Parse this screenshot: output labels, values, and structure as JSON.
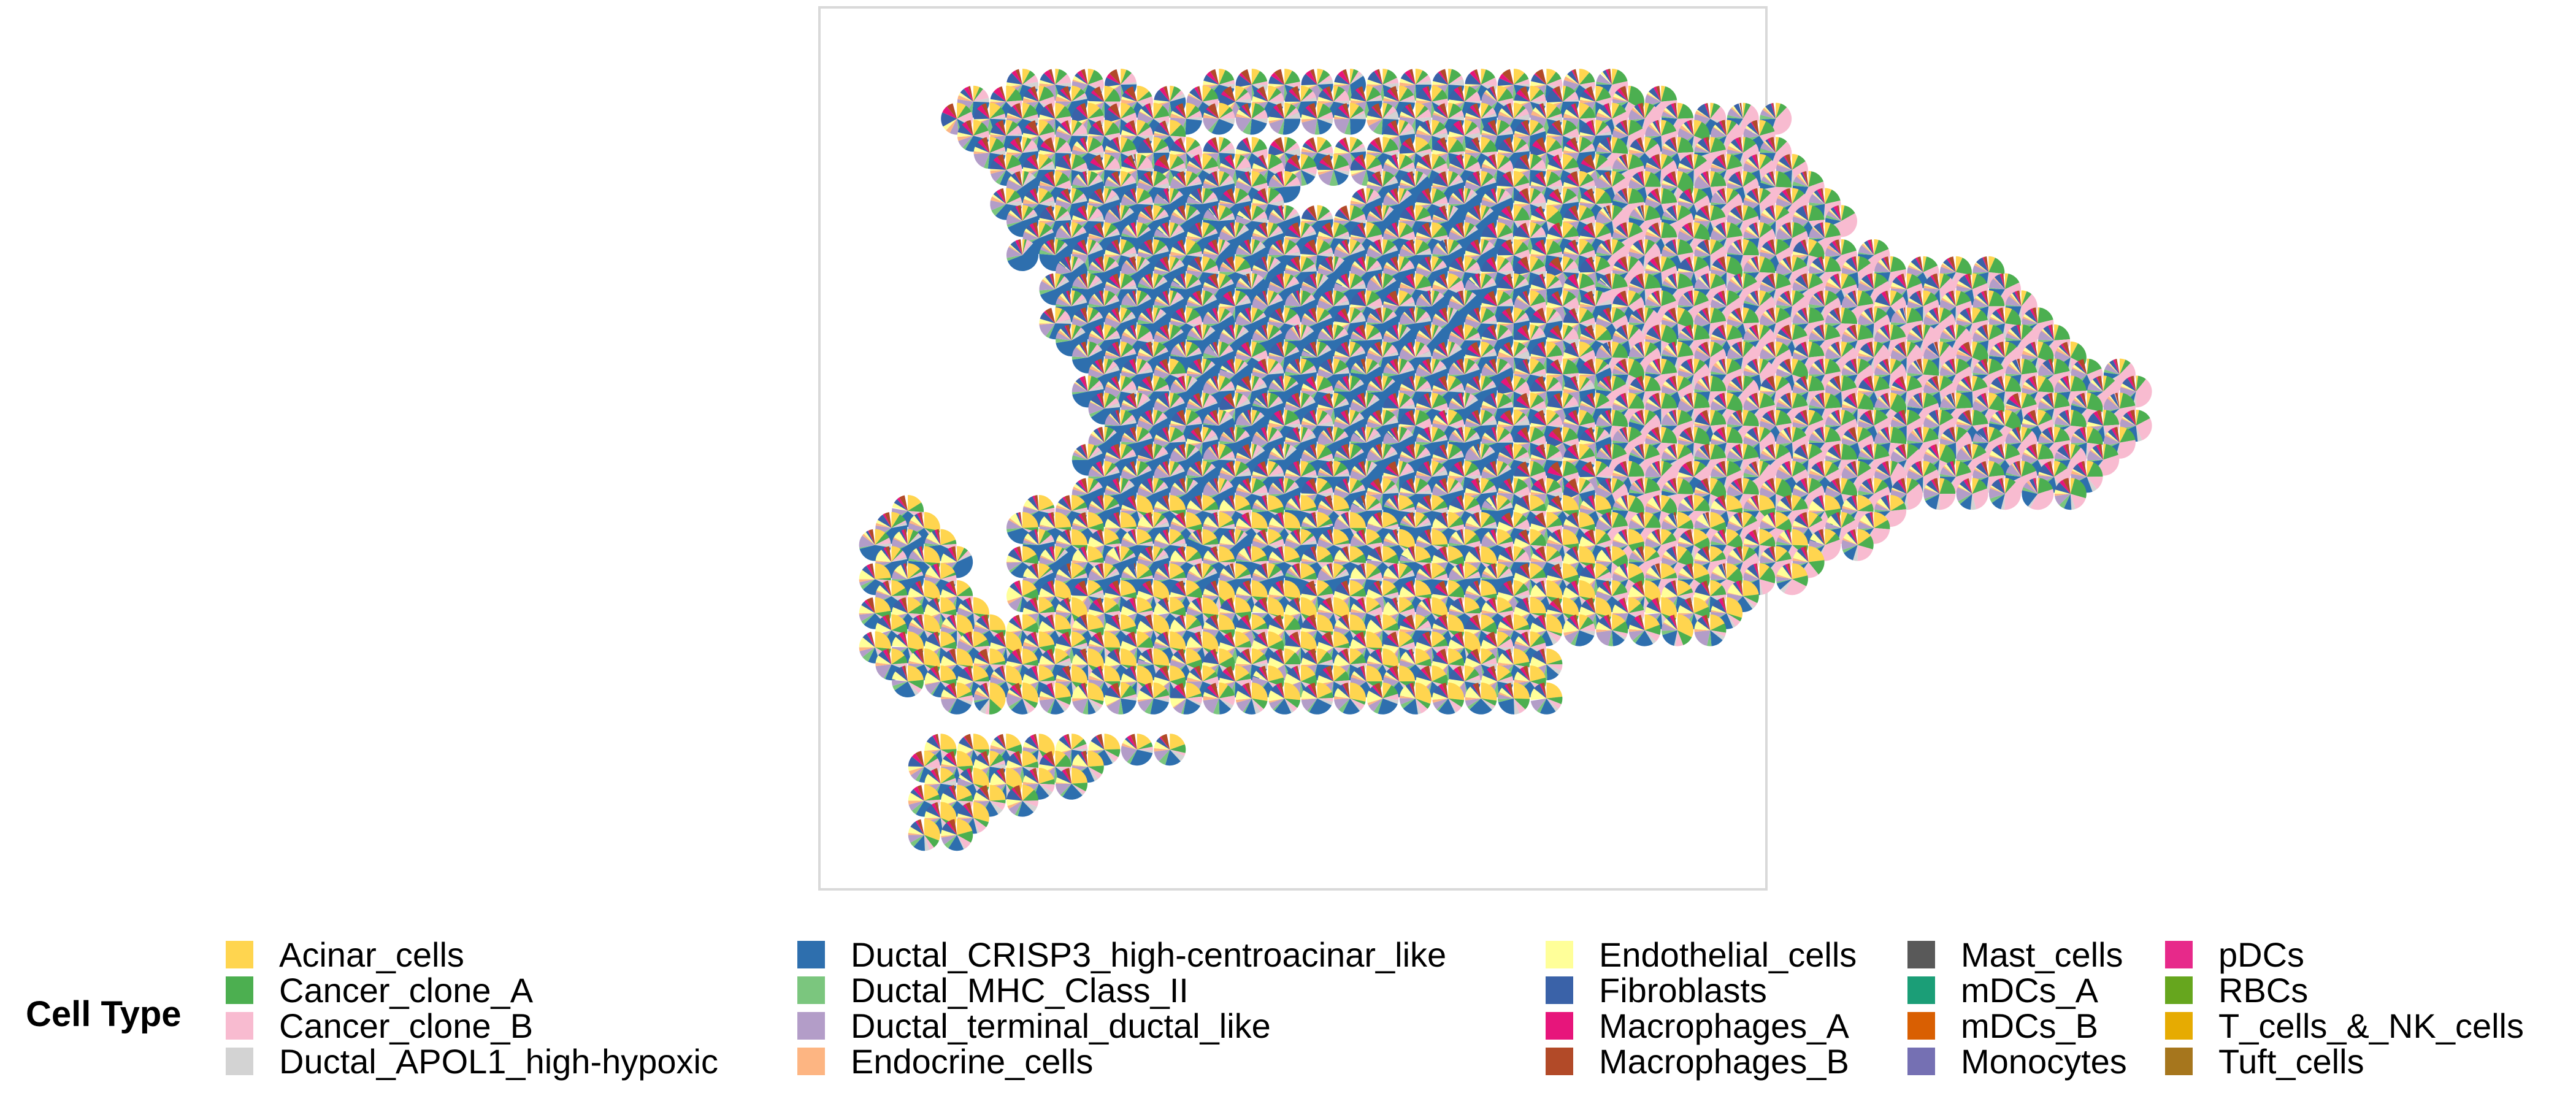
{
  "chart_data": {
    "type": "scatter",
    "marker": "pie",
    "title": "",
    "xlabel": "",
    "ylabel": "",
    "grid": false,
    "legend": {
      "title": "Cell Type",
      "position": "bottom",
      "entries": [
        {
          "name": "Acinar_cells",
          "color": "#FFD54F"
        },
        {
          "name": "Cancer_clone_A",
          "color": "#4CAF50"
        },
        {
          "name": "Cancer_clone_B",
          "color": "#F8BBD0"
        },
        {
          "name": "Ductal_APOL1_high-hypoxic",
          "color": "#D3D3D3"
        },
        {
          "name": "Ductal_CRISP3_high-centroacinar_like",
          "color": "#2E6FAE"
        },
        {
          "name": "Ductal_MHC_Class_II",
          "color": "#7BC67E"
        },
        {
          "name": "Ductal_terminal_ductal_like",
          "color": "#B39DC8"
        },
        {
          "name": "Endocrine_cells",
          "color": "#FDB582"
        },
        {
          "name": "Endothelial_cells",
          "color": "#FFFF99"
        },
        {
          "name": "Fibroblasts",
          "color": "#3A62A8"
        },
        {
          "name": "Macrophages_A",
          "color": "#E7157B"
        },
        {
          "name": "Macrophages_B",
          "color": "#B24A28"
        },
        {
          "name": "Mast_cells",
          "color": "#595959"
        },
        {
          "name": "mDCs_A",
          "color": "#1B9E77"
        },
        {
          "name": "mDCs_B",
          "color": "#D95F02"
        },
        {
          "name": "Monocytes",
          "color": "#7570B3"
        },
        {
          "name": "pDCs",
          "color": "#E7298A"
        },
        {
          "name": "RBCs",
          "color": "#66A61E"
        },
        {
          "name": "T_cells_&_NK_cells",
          "color": "#E6AB02"
        },
        {
          "name": "Tuft_cells",
          "color": "#A6761D"
        }
      ]
    },
    "spots": [
      {
        "row": 0,
        "cols": [
          [
            9,
            17
          ],
          [
            22,
            47
          ]
        ]
      },
      {
        "row": 1,
        "cols": [
          [
            6,
            49
          ]
        ]
      },
      {
        "row": 2,
        "cols": [
          [
            6,
            56
          ]
        ]
      },
      {
        "row": 3,
        "cols": [
          [
            6,
            20
          ],
          [
            32,
            56
          ]
        ]
      },
      {
        "row": 4,
        "cols": [
          [
            8,
            57
          ]
        ]
      },
      {
        "row": 5,
        "cols": [
          [
            9,
            58
          ]
        ]
      },
      {
        "row": 6,
        "cols": [
          [
            9,
            27
          ],
          [
            32,
            58
          ]
        ]
      },
      {
        "row": 7,
        "cols": [
          [
            8,
            26
          ],
          [
            30,
            59
          ]
        ]
      },
      {
        "row": 8,
        "cols": [
          [
            10,
            60
          ]
        ]
      },
      {
        "row": 9,
        "cols": [
          [
            10,
            60
          ]
        ]
      },
      {
        "row": 10,
        "cols": [
          [
            10,
            63
          ]
        ]
      },
      {
        "row": 11,
        "cols": [
          [
            12,
            70
          ]
        ]
      },
      {
        "row": 12,
        "cols": [
          [
            12,
            71
          ]
        ]
      },
      {
        "row": 13,
        "cols": [
          [
            12,
            72
          ]
        ]
      },
      {
        "row": 14,
        "cols": [
          [
            12,
            73
          ]
        ]
      },
      {
        "row": 15,
        "cols": [
          [
            12,
            74
          ]
        ]
      },
      {
        "row": 16,
        "cols": [
          [
            13,
            74
          ]
        ]
      },
      {
        "row": 17,
        "cols": [
          [
            14,
            77
          ]
        ]
      },
      {
        "row": 18,
        "cols": [
          [
            14,
            78
          ]
        ]
      },
      {
        "row": 19,
        "cols": [
          [
            15,
            78
          ]
        ]
      },
      {
        "row": 20,
        "cols": [
          [
            15,
            78
          ]
        ]
      },
      {
        "row": 21,
        "cols": [
          [
            14,
            78
          ]
        ]
      },
      {
        "row": 22,
        "cols": [
          [
            13,
            77
          ]
        ]
      },
      {
        "row": 23,
        "cols": [
          [
            15,
            76
          ]
        ]
      },
      {
        "row": 24,
        "cols": [
          [
            14,
            74
          ]
        ]
      },
      {
        "row": 25,
        "cols": [
          [
            2,
            3
          ],
          [
            11,
            64
          ]
        ]
      },
      {
        "row": 26,
        "cols": [
          [
            1,
            4
          ],
          [
            10,
            63
          ]
        ]
      },
      {
        "row": 27,
        "cols": [
          [
            1,
            5
          ],
          [
            10,
            61
          ]
        ]
      },
      {
        "row": 28,
        "cols": [
          [
            1,
            6
          ],
          [
            10,
            58
          ]
        ]
      },
      {
        "row": 29,
        "cols": [
          [
            1,
            6
          ],
          [
            10,
            57
          ]
        ]
      },
      {
        "row": 30,
        "cols": [
          [
            1,
            7
          ],
          [
            10,
            55
          ]
        ]
      },
      {
        "row": 31,
        "cols": [
          [
            1,
            8
          ],
          [
            10,
            54
          ]
        ]
      },
      {
        "row": 32,
        "cols": [
          [
            1,
            9
          ],
          [
            10,
            53
          ]
        ]
      },
      {
        "row": 33,
        "cols": [
          [
            1,
            42
          ]
        ]
      },
      {
        "row": 34,
        "cols": [
          [
            2,
            42
          ]
        ]
      },
      {
        "row": 35,
        "cols": [
          [
            2,
            42
          ]
        ]
      },
      {
        "row": 36,
        "cols": [
          [
            5,
            42
          ]
        ]
      },
      {
        "row": 37,
        "cols": []
      },
      {
        "row": 38,
        "cols": []
      },
      {
        "row": 39,
        "cols": [
          [
            5,
            15
          ],
          [
            17,
            20
          ]
        ]
      },
      {
        "row": 40,
        "cols": [
          [
            4,
            15
          ]
        ]
      },
      {
        "row": 41,
        "cols": [
          [
            4,
            14
          ]
        ]
      },
      {
        "row": 42,
        "cols": [
          [
            4,
            11
          ]
        ]
      },
      {
        "row": 43,
        "cols": [
          [
            4,
            8
          ]
        ]
      },
      {
        "row": 44,
        "cols": [
          [
            4,
            7
          ]
        ]
      }
    ]
  }
}
